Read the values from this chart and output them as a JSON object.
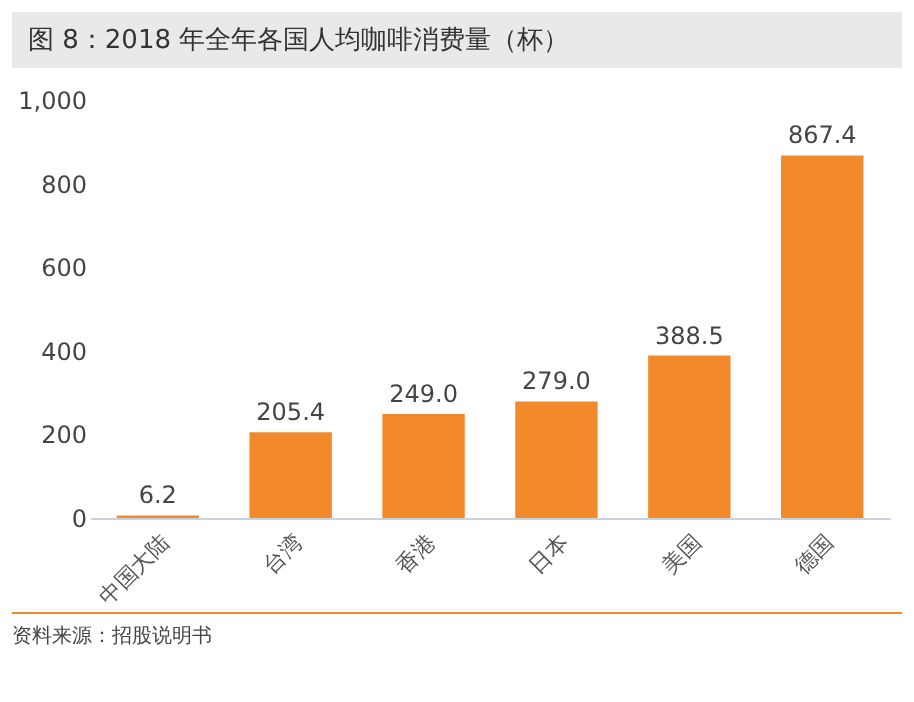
{
  "chart_data": {
    "type": "bar",
    "title": "图 8：2018 年全年各国人均咖啡消费量（杯）",
    "categories": [
      "中国大陆",
      "台湾",
      "香港",
      "日本",
      "美国",
      "德国"
    ],
    "values": [
      6.2,
      205.4,
      249.0,
      279.0,
      388.5,
      867.4
    ],
    "value_labels": [
      "6.2",
      "205.4",
      "249.0",
      "279.0",
      "388.5",
      "867.4"
    ],
    "color": "#f28a2c",
    "ylim": [
      0,
      1000
    ],
    "yticks": [
      {
        "value": 0,
        "label": "0"
      },
      {
        "value": 200,
        "label": "200"
      },
      {
        "value": 400,
        "label": "400"
      },
      {
        "value": 600,
        "label": "600"
      },
      {
        "value": 800,
        "label": "800"
      },
      {
        "value": 1000,
        "label": "1,000"
      }
    ],
    "grid": false,
    "annotations": [
      "资料来源：招股说明书"
    ]
  }
}
